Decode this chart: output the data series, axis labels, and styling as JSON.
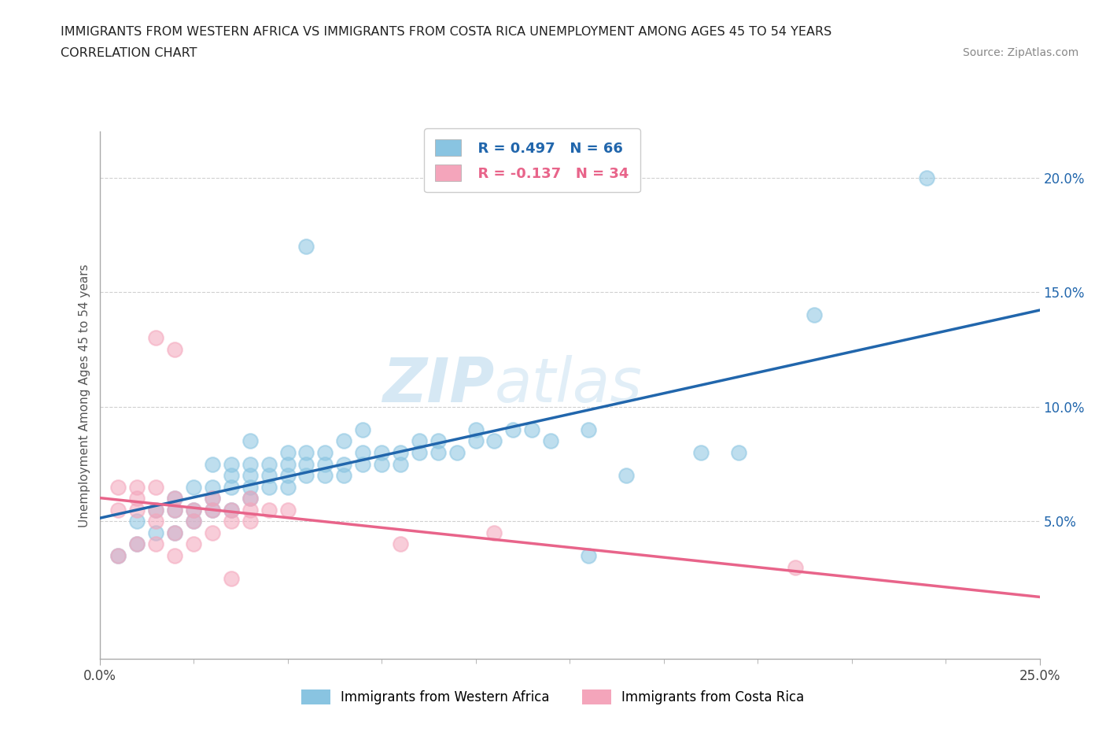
{
  "title_line1": "IMMIGRANTS FROM WESTERN AFRICA VS IMMIGRANTS FROM COSTA RICA UNEMPLOYMENT AMONG AGES 45 TO 54 YEARS",
  "title_line2": "CORRELATION CHART",
  "source_text": "Source: ZipAtlas.com",
  "ylabel": "Unemployment Among Ages 45 to 54 years",
  "xlim": [
    0.0,
    0.25
  ],
  "ylim": [
    -0.01,
    0.22
  ],
  "ytick_values": [
    0.05,
    0.1,
    0.15,
    0.2
  ],
  "legend_blue_label": "Immigrants from Western Africa",
  "legend_pink_label": "Immigrants from Costa Rica",
  "r_blue": "R = 0.497",
  "n_blue": "N = 66",
  "r_pink": "R = -0.137",
  "n_pink": "N = 34",
  "watermark_zip": "ZIP",
  "watermark_atlas": "atlas",
  "blue_color": "#89c4e1",
  "pink_color": "#f4a5bb",
  "blue_line_color": "#2166ac",
  "pink_line_color": "#e8648a",
  "grid_color": "#d0d0d0",
  "blue_scatter": [
    [
      0.005,
      0.035
    ],
    [
      0.01,
      0.04
    ],
    [
      0.01,
      0.05
    ],
    [
      0.015,
      0.045
    ],
    [
      0.015,
      0.055
    ],
    [
      0.02,
      0.045
    ],
    [
      0.02,
      0.055
    ],
    [
      0.02,
      0.06
    ],
    [
      0.025,
      0.05
    ],
    [
      0.025,
      0.055
    ],
    [
      0.025,
      0.065
    ],
    [
      0.03,
      0.055
    ],
    [
      0.03,
      0.06
    ],
    [
      0.03,
      0.065
    ],
    [
      0.03,
      0.075
    ],
    [
      0.035,
      0.055
    ],
    [
      0.035,
      0.065
    ],
    [
      0.035,
      0.07
    ],
    [
      0.035,
      0.075
    ],
    [
      0.04,
      0.06
    ],
    [
      0.04,
      0.065
    ],
    [
      0.04,
      0.07
    ],
    [
      0.04,
      0.075
    ],
    [
      0.04,
      0.085
    ],
    [
      0.045,
      0.065
    ],
    [
      0.045,
      0.07
    ],
    [
      0.045,
      0.075
    ],
    [
      0.05,
      0.065
    ],
    [
      0.05,
      0.07
    ],
    [
      0.05,
      0.075
    ],
    [
      0.05,
      0.08
    ],
    [
      0.055,
      0.07
    ],
    [
      0.055,
      0.075
    ],
    [
      0.055,
      0.08
    ],
    [
      0.06,
      0.07
    ],
    [
      0.06,
      0.075
    ],
    [
      0.06,
      0.08
    ],
    [
      0.065,
      0.07
    ],
    [
      0.065,
      0.075
    ],
    [
      0.065,
      0.085
    ],
    [
      0.07,
      0.075
    ],
    [
      0.07,
      0.08
    ],
    [
      0.07,
      0.09
    ],
    [
      0.075,
      0.075
    ],
    [
      0.075,
      0.08
    ],
    [
      0.08,
      0.075
    ],
    [
      0.08,
      0.08
    ],
    [
      0.085,
      0.08
    ],
    [
      0.085,
      0.085
    ],
    [
      0.09,
      0.08
    ],
    [
      0.09,
      0.085
    ],
    [
      0.095,
      0.08
    ],
    [
      0.1,
      0.085
    ],
    [
      0.1,
      0.09
    ],
    [
      0.105,
      0.085
    ],
    [
      0.11,
      0.09
    ],
    [
      0.115,
      0.09
    ],
    [
      0.12,
      0.085
    ],
    [
      0.13,
      0.09
    ],
    [
      0.055,
      0.17
    ],
    [
      0.22,
      0.2
    ],
    [
      0.19,
      0.14
    ],
    [
      0.14,
      0.07
    ],
    [
      0.16,
      0.08
    ],
    [
      0.17,
      0.08
    ],
    [
      0.13,
      0.035
    ]
  ],
  "pink_scatter": [
    [
      0.005,
      0.035
    ],
    [
      0.005,
      0.055
    ],
    [
      0.005,
      0.065
    ],
    [
      0.01,
      0.04
    ],
    [
      0.01,
      0.055
    ],
    [
      0.01,
      0.06
    ],
    [
      0.01,
      0.065
    ],
    [
      0.015,
      0.04
    ],
    [
      0.015,
      0.05
    ],
    [
      0.015,
      0.055
    ],
    [
      0.015,
      0.065
    ],
    [
      0.02,
      0.035
    ],
    [
      0.02,
      0.045
    ],
    [
      0.02,
      0.055
    ],
    [
      0.02,
      0.06
    ],
    [
      0.025,
      0.04
    ],
    [
      0.025,
      0.05
    ],
    [
      0.025,
      0.055
    ],
    [
      0.03,
      0.045
    ],
    [
      0.03,
      0.055
    ],
    [
      0.03,
      0.06
    ],
    [
      0.035,
      0.05
    ],
    [
      0.035,
      0.055
    ],
    [
      0.04,
      0.05
    ],
    [
      0.04,
      0.055
    ],
    [
      0.04,
      0.06
    ],
    [
      0.045,
      0.055
    ],
    [
      0.05,
      0.055
    ],
    [
      0.015,
      0.13
    ],
    [
      0.02,
      0.125
    ],
    [
      0.185,
      0.03
    ],
    [
      0.105,
      0.045
    ],
    [
      0.08,
      0.04
    ],
    [
      0.035,
      0.025
    ]
  ]
}
